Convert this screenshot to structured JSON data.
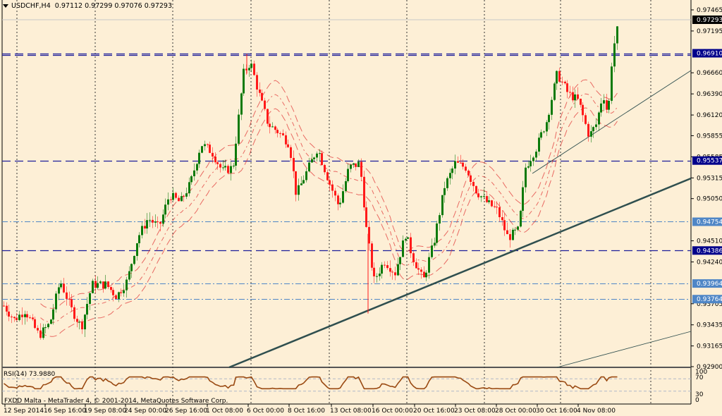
{
  "header": {
    "symbol": "USDCHF,H4",
    "ohlc": "0.97112 0.97299 0.97076 0.97293"
  },
  "rsi": {
    "label": "RSI(14) 73.9880",
    "levels": [
      "100",
      "70",
      "30",
      "0"
    ]
  },
  "footer": {
    "copyright": "FXDD Malta - MetaTrader 4, © 2001-2014, MetaQuotes Software Corp."
  },
  "colors": {
    "background": "#FDEFD6",
    "bull": "#0A7A0A",
    "bear": "#FF1A1A",
    "hline_dashed": "#1E1E9A",
    "hline_dashdot": "#4F86C6",
    "trendline": "#2F4F4F",
    "rsi": "#9A4A12",
    "envelope": "#E03030"
  },
  "chart_data": {
    "type": "candlestick",
    "title": "USDCHF,H4",
    "ohlc_last": {
      "open": 0.97112,
      "high": 0.97299,
      "low": 0.97076,
      "close": 0.97293
    },
    "y_ticks": [
      "0.97465",
      "0.97195",
      "0.96660",
      "0.96390",
      "0.96120",
      "0.95855",
      "0.95585",
      "0.95315",
      "0.95050",
      "0.94510",
      "0.94240",
      "0.93705",
      "0.93435",
      "0.93165",
      "0.92900"
    ],
    "x_ticks": [
      "12 Sep 2014",
      "16 Sep 16:00",
      "19 Sep 08:00",
      "24 Sep 00:00",
      "26 Sep 16:00",
      "1 Oct 08:00",
      "6 Oct 00:00",
      "8 Oct 16:00",
      "13 Oct 08:00",
      "16 Oct 00:00",
      "20 Oct 16:00",
      "23 Oct 08:00",
      "28 Oct 00:00",
      "30 Oct 16:00",
      "4 Nov 08:00"
    ],
    "price_labels": [
      {
        "value": "0.97293",
        "style": "current",
        "bg": "#000000"
      },
      {
        "value": "0.96910",
        "style": "dashed",
        "bg": "#00008B"
      },
      {
        "value": "0.95537",
        "style": "dashed",
        "bg": "#00008B"
      },
      {
        "value": "0.94754",
        "style": "dashdot",
        "bg": "#4F86C6"
      },
      {
        "value": "0.94386",
        "style": "dashed",
        "bg": "#00008B"
      },
      {
        "value": "0.93964",
        "style": "dashdot",
        "bg": "#4F86C6"
      },
      {
        "value": "0.93764",
        "style": "dashdot",
        "bg": "#4F86C6"
      }
    ],
    "ylim": [
      0.929,
      0.97465
    ],
    "indicator": {
      "name": "RSI(14)",
      "value": 73.988,
      "levels": [
        30,
        70
      ],
      "range": [
        0,
        100
      ]
    },
    "trendlines": [
      {
        "from": [
          "16 Oct 00:00",
          0.929
        ],
        "to": [
          "end",
          0.9534
        ],
        "weight": "thick"
      },
      {
        "from": [
          "30 Oct 16:00",
          0.9532
        ],
        "to": [
          "end",
          0.9666
        ],
        "weight": "thin"
      },
      {
        "from": [
          "4 Nov 08:00",
          0.929
        ],
        "to": [
          "end",
          0.934
        ],
        "weight": "thin"
      }
    ]
  }
}
